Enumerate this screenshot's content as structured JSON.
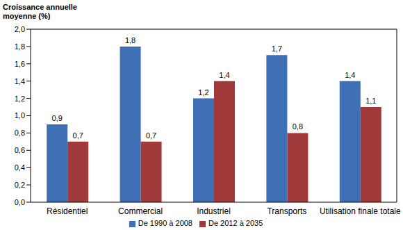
{
  "chart_data": {
    "type": "bar",
    "y_label": "Croissance annuelle moyenne (%)",
    "categories": [
      "Résidentiel",
      "Commercial",
      "Industriel",
      "Transports",
      "Utilisation finale totale"
    ],
    "series": [
      {
        "name": "De 1990 à 2008",
        "color": "#3F6FB5",
        "values": [
          0.9,
          1.8,
          1.2,
          1.7,
          1.4
        ],
        "value_labels": [
          "0,9",
          "1,8",
          "1,2",
          "1,7",
          "1,4"
        ]
      },
      {
        "name": "De 2012 à 2035",
        "color": "#A0393A",
        "values": [
          0.7,
          0.7,
          1.4,
          0.8,
          1.1
        ],
        "value_labels": [
          "0,7",
          "0,7",
          "1,4",
          "0,8",
          "1,1"
        ]
      }
    ],
    "ylim": [
      0,
      2
    ],
    "yticks": [
      {
        "value": 0,
        "label": "0,0"
      },
      {
        "value": 0.2,
        "label": "0,2"
      },
      {
        "value": 0.4,
        "label": "0,4"
      },
      {
        "value": 0.6,
        "label": "0,6"
      },
      {
        "value": 0.8,
        "label": "0,8"
      },
      {
        "value": 1,
        "label": "1,0"
      },
      {
        "value": 1.2,
        "label": "1,2"
      },
      {
        "value": 1.4,
        "label": "1,4"
      },
      {
        "value": 1.6,
        "label": "1,6"
      },
      {
        "value": 1.8,
        "label": "1,8"
      },
      {
        "value": 2,
        "label": "2,0"
      }
    ],
    "grid": false,
    "legend": "bottom",
    "data_labels": true
  }
}
